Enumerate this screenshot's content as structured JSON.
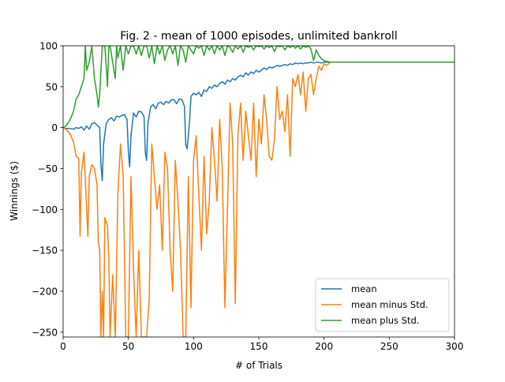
{
  "chart_data": {
    "type": "line",
    "title": "Fig. 2 - mean of 1000 episodes, unlimited bankroll",
    "xlabel": "# of Trials",
    "ylabel": "Winnings ($)",
    "xlim": [
      0,
      300
    ],
    "ylim": [
      -256,
      100
    ],
    "xticks": [
      0,
      50,
      100,
      150,
      200,
      250,
      300
    ],
    "yticks": [
      -250,
      -200,
      -150,
      -100,
      -50,
      0,
      50,
      100
    ],
    "xtick_labels": [
      "0",
      "50",
      "100",
      "150",
      "200",
      "250",
      "300"
    ],
    "ytick_labels": [
      "−250",
      "−200",
      "−150",
      "−100",
      "−50",
      "0",
      "50",
      "100"
    ],
    "grid": false,
    "legend_position": "lower-right",
    "series": [
      {
        "name": "mean",
        "color": "#1f77b4",
        "points": [
          [
            0,
            0
          ],
          [
            2,
            -1
          ],
          [
            5,
            -1
          ],
          [
            8,
            -2
          ],
          [
            10,
            0
          ],
          [
            12,
            -1
          ],
          [
            14,
            1
          ],
          [
            16,
            -3
          ],
          [
            18,
            2
          ],
          [
            20,
            -2
          ],
          [
            22,
            5
          ],
          [
            24,
            6
          ],
          [
            26,
            3
          ],
          [
            28,
            0
          ],
          [
            29,
            -45
          ],
          [
            30,
            -65
          ],
          [
            31,
            -20
          ],
          [
            33,
            5
          ],
          [
            35,
            10
          ],
          [
            37,
            12
          ],
          [
            39,
            8
          ],
          [
            41,
            14
          ],
          [
            43,
            13
          ],
          [
            45,
            15
          ],
          [
            47,
            16
          ],
          [
            49,
            10
          ],
          [
            50,
            -30
          ],
          [
            51,
            -48
          ],
          [
            52,
            -10
          ],
          [
            54,
            18
          ],
          [
            56,
            13
          ],
          [
            58,
            20
          ],
          [
            60,
            19
          ],
          [
            62,
            14
          ],
          [
            63,
            -30
          ],
          [
            64,
            -40
          ],
          [
            65,
            5
          ],
          [
            67,
            25
          ],
          [
            69,
            28
          ],
          [
            71,
            23
          ],
          [
            73,
            30
          ],
          [
            75,
            31
          ],
          [
            77,
            28
          ],
          [
            79,
            32
          ],
          [
            81,
            30
          ],
          [
            83,
            34
          ],
          [
            85,
            34
          ],
          [
            87,
            29
          ],
          [
            89,
            35
          ],
          [
            91,
            34
          ],
          [
            93,
            26
          ],
          [
            94,
            -20
          ],
          [
            95,
            -26
          ],
          [
            96,
            -10
          ],
          [
            97,
            10
          ],
          [
            98,
            38
          ],
          [
            100,
            42
          ],
          [
            102,
            40
          ],
          [
            104,
            43
          ],
          [
            106,
            38
          ],
          [
            108,
            46
          ],
          [
            110,
            44
          ],
          [
            112,
            50
          ],
          [
            114,
            48
          ],
          [
            116,
            52
          ],
          [
            118,
            50
          ],
          [
            120,
            54
          ],
          [
            122,
            56
          ],
          [
            124,
            53
          ],
          [
            126,
            58
          ],
          [
            128,
            56
          ],
          [
            130,
            60
          ],
          [
            132,
            58
          ],
          [
            134,
            62
          ],
          [
            136,
            64
          ],
          [
            138,
            62
          ],
          [
            140,
            67
          ],
          [
            142,
            64
          ],
          [
            144,
            68
          ],
          [
            146,
            66
          ],
          [
            148,
            70
          ],
          [
            150,
            68
          ],
          [
            152,
            70
          ],
          [
            154,
            73
          ],
          [
            156,
            71
          ],
          [
            158,
            74
          ],
          [
            160,
            73
          ],
          [
            162,
            74
          ],
          [
            164,
            76
          ],
          [
            166,
            75
          ],
          [
            168,
            76
          ],
          [
            170,
            77
          ],
          [
            172,
            76
          ],
          [
            174,
            78
          ],
          [
            176,
            77
          ],
          [
            178,
            79
          ],
          [
            180,
            78
          ],
          [
            182,
            79
          ],
          [
            184,
            78
          ],
          [
            186,
            79
          ],
          [
            188,
            79
          ],
          [
            190,
            80
          ],
          [
            192,
            79
          ],
          [
            195,
            80
          ],
          [
            198,
            79
          ],
          [
            200,
            80
          ],
          [
            210,
            80
          ],
          [
            250,
            80
          ],
          [
            300,
            80
          ]
        ]
      },
      {
        "name": "mean minus Std.",
        "color": "#ff7f0e",
        "points": [
          [
            0,
            0
          ],
          [
            2,
            -2
          ],
          [
            4,
            -5
          ],
          [
            6,
            -10
          ],
          [
            8,
            -18
          ],
          [
            10,
            -35
          ],
          [
            12,
            -38
          ],
          [
            13,
            -133
          ],
          [
            14,
            -55
          ],
          [
            16,
            -30
          ],
          [
            18,
            -100
          ],
          [
            19,
            -133
          ],
          [
            20,
            -60
          ],
          [
            22,
            -45
          ],
          [
            24,
            -50
          ],
          [
            26,
            -70
          ],
          [
            27,
            -140
          ],
          [
            28,
            -150
          ],
          [
            29,
            -256
          ],
          [
            30,
            -200
          ],
          [
            31,
            -256
          ],
          [
            32,
            -110
          ],
          [
            34,
            -120
          ],
          [
            35,
            -160
          ],
          [
            36,
            -256
          ],
          [
            38,
            -180
          ],
          [
            40,
            -256
          ],
          [
            42,
            -80
          ],
          [
            44,
            -20
          ],
          [
            46,
            -60
          ],
          [
            48,
            -256
          ],
          [
            50,
            -256
          ],
          [
            52,
            -60
          ],
          [
            54,
            -175
          ],
          [
            56,
            -256
          ],
          [
            58,
            -150
          ],
          [
            60,
            -256
          ],
          [
            62,
            -256
          ],
          [
            64,
            -256
          ],
          [
            66,
            -210
          ],
          [
            68,
            -20
          ],
          [
            70,
            -60
          ],
          [
            72,
            -100
          ],
          [
            74,
            -70
          ],
          [
            76,
            -150
          ],
          [
            78,
            -30
          ],
          [
            80,
            -50
          ],
          [
            82,
            -150
          ],
          [
            84,
            -200
          ],
          [
            86,
            -40
          ],
          [
            88,
            -90
          ],
          [
            90,
            -150
          ],
          [
            92,
            -256
          ],
          [
            94,
            -256
          ],
          [
            96,
            -60
          ],
          [
            98,
            -220
          ],
          [
            100,
            -40
          ],
          [
            102,
            -10
          ],
          [
            104,
            -80
          ],
          [
            106,
            -150
          ],
          [
            108,
            -35
          ],
          [
            110,
            -130
          ],
          [
            112,
            -90
          ],
          [
            114,
            0
          ],
          [
            116,
            -40
          ],
          [
            118,
            -90
          ],
          [
            120,
            10
          ],
          [
            122,
            -50
          ],
          [
            124,
            -220
          ],
          [
            126,
            -100
          ],
          [
            128,
            30
          ],
          [
            130,
            -20
          ],
          [
            132,
            -215
          ],
          [
            134,
            -10
          ],
          [
            136,
            30
          ],
          [
            138,
            -40
          ],
          [
            140,
            20
          ],
          [
            142,
            -10
          ],
          [
            144,
            -40
          ],
          [
            146,
            30
          ],
          [
            148,
            -60
          ],
          [
            150,
            10
          ],
          [
            152,
            -20
          ],
          [
            154,
            40
          ],
          [
            156,
            10
          ],
          [
            158,
            -35
          ],
          [
            160,
            -40
          ],
          [
            162,
            -15
          ],
          [
            164,
            50
          ],
          [
            166,
            10
          ],
          [
            168,
            20
          ],
          [
            170,
            -5
          ],
          [
            172,
            40
          ],
          [
            174,
            -35
          ],
          [
            176,
            60
          ],
          [
            178,
            50
          ],
          [
            180,
            65
          ],
          [
            182,
            40
          ],
          [
            184,
            68
          ],
          [
            186,
            20
          ],
          [
            188,
            60
          ],
          [
            190,
            65
          ],
          [
            192,
            40
          ],
          [
            194,
            60
          ],
          [
            196,
            75
          ],
          [
            198,
            70
          ],
          [
            200,
            78
          ],
          [
            202,
            76
          ],
          [
            205,
            80
          ],
          [
            210,
            80
          ],
          [
            250,
            80
          ],
          [
            300,
            80
          ]
        ]
      },
      {
        "name": "mean plus Std.",
        "color": "#2ca02c",
        "points": [
          [
            0,
            0
          ],
          [
            2,
            2
          ],
          [
            4,
            6
          ],
          [
            6,
            12
          ],
          [
            8,
            20
          ],
          [
            10,
            35
          ],
          [
            12,
            40
          ],
          [
            14,
            50
          ],
          [
            16,
            60
          ],
          [
            17,
            100
          ],
          [
            18,
            70
          ],
          [
            20,
            80
          ],
          [
            22,
            100
          ],
          [
            24,
            60
          ],
          [
            26,
            40
          ],
          [
            27,
            25
          ],
          [
            28,
            40
          ],
          [
            30,
            100
          ],
          [
            32,
            100
          ],
          [
            34,
            50
          ],
          [
            35,
            100
          ],
          [
            36,
            100
          ],
          [
            38,
            80
          ],
          [
            40,
            60
          ],
          [
            41,
            100
          ],
          [
            42,
            85
          ],
          [
            44,
            100
          ],
          [
            46,
            70
          ],
          [
            48,
            100
          ],
          [
            50,
            90
          ],
          [
            52,
            100
          ],
          [
            54,
            100
          ],
          [
            56,
            90
          ],
          [
            58,
            100
          ],
          [
            60,
            88
          ],
          [
            62,
            100
          ],
          [
            64,
            100
          ],
          [
            66,
            85
          ],
          [
            68,
            100
          ],
          [
            70,
            78
          ],
          [
            72,
            100
          ],
          [
            74,
            90
          ],
          [
            76,
            100
          ],
          [
            78,
            82
          ],
          [
            80,
            95
          ],
          [
            82,
            100
          ],
          [
            84,
            90
          ],
          [
            86,
            100
          ],
          [
            88,
            76
          ],
          [
            90,
            100
          ],
          [
            92,
            95
          ],
          [
            94,
            80
          ],
          [
            96,
            100
          ],
          [
            98,
            95
          ],
          [
            100,
            90
          ],
          [
            102,
            100
          ],
          [
            104,
            97
          ],
          [
            106,
            100
          ],
          [
            108,
            88
          ],
          [
            110,
            100
          ],
          [
            112,
            95
          ],
          [
            114,
            100
          ],
          [
            116,
            90
          ],
          [
            118,
            100
          ],
          [
            120,
            95
          ],
          [
            122,
            100
          ],
          [
            124,
            88
          ],
          [
            126,
            100
          ],
          [
            128,
            98
          ],
          [
            130,
            92
          ],
          [
            132,
            100
          ],
          [
            134,
            96
          ],
          [
            136,
            100
          ],
          [
            138,
            92
          ],
          [
            140,
            100
          ],
          [
            142,
            98
          ],
          [
            144,
            100
          ],
          [
            146,
            95
          ],
          [
            148,
            100
          ],
          [
            150,
            99
          ],
          [
            152,
            100
          ],
          [
            154,
            96
          ],
          [
            156,
            100
          ],
          [
            158,
            98
          ],
          [
            160,
            100
          ],
          [
            162,
            93
          ],
          [
            164,
            100
          ],
          [
            166,
            99
          ],
          [
            168,
            100
          ],
          [
            170,
            95
          ],
          [
            172,
            100
          ],
          [
            174,
            98
          ],
          [
            176,
            100
          ],
          [
            178,
            97
          ],
          [
            180,
            100
          ],
          [
            182,
            96
          ],
          [
            184,
            100
          ],
          [
            186,
            98
          ],
          [
            188,
            100
          ],
          [
            190,
            96
          ],
          [
            192,
            82
          ],
          [
            194,
            95
          ],
          [
            196,
            88
          ],
          [
            198,
            84
          ],
          [
            200,
            82
          ],
          [
            202,
            81
          ],
          [
            205,
            80
          ],
          [
            210,
            80
          ],
          [
            250,
            80
          ],
          [
            300,
            80
          ]
        ]
      }
    ]
  }
}
